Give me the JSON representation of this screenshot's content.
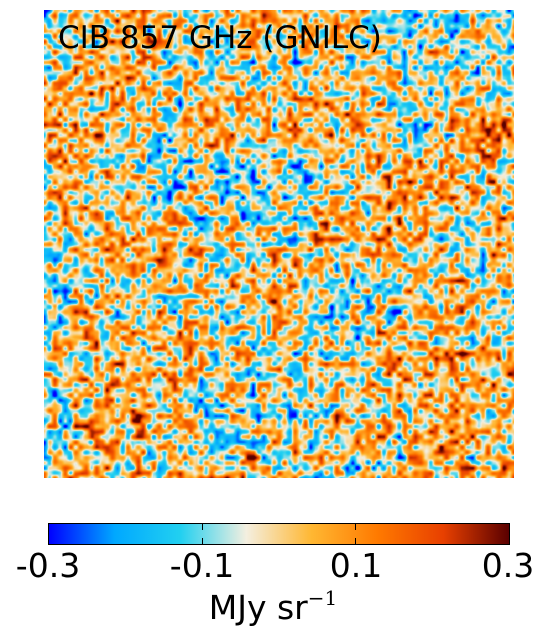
{
  "map": {
    "title": "CIB 857 GHz (GNILC)"
  },
  "colorbar": {
    "min": -0.3,
    "max": 0.3,
    "tick_labels": [
      "-0.3",
      "-0.1",
      "0.1",
      "0.3"
    ],
    "tick_values": [
      -0.3,
      -0.1,
      0.1,
      0.3
    ],
    "unit_base": "MJy sr",
    "unit_exponent": "−1",
    "colors": [
      "#0000ff",
      "#00a8ff",
      "#22d0f0",
      "#f4efe0",
      "#ffb732",
      "#ff7a00",
      "#e84000",
      "#5a0000"
    ]
  }
}
